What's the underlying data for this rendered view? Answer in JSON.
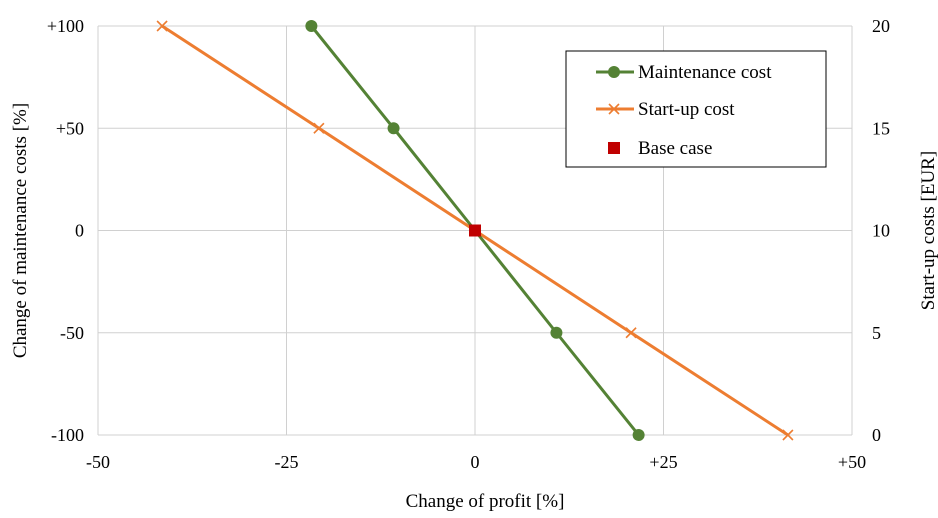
{
  "chart_data": {
    "type": "line",
    "title": "",
    "xlabel": "Change of profit [%]",
    "ylabel_left": "Change of maintenance costs [%]",
    "ylabel_right": "Start-up costs [EUR]",
    "xlim": [
      -50,
      50
    ],
    "ylim_left": [
      -100,
      100
    ],
    "ylim_right": [
      0,
      20
    ],
    "x_ticks": [
      -50,
      -25,
      0,
      25,
      50
    ],
    "x_tick_labels": [
      "-50",
      "-25",
      "0",
      "+25",
      "+50"
    ],
    "y_left_ticks": [
      100,
      50,
      0,
      -50,
      -100
    ],
    "y_left_tick_labels": [
      "+100",
      "+50",
      "0",
      "-50",
      "-100"
    ],
    "y_right_ticks": [
      20,
      15,
      10,
      5,
      0
    ],
    "y_right_tick_labels": [
      "20",
      "15",
      "10",
      "5",
      "0"
    ],
    "grid": true,
    "legend_position": "top-right",
    "series": [
      {
        "name": "Maintenance cost",
        "axis": "left",
        "color": "#548235",
        "marker": "circle",
        "x": [
          -21.7,
          -10.8,
          0,
          10.8,
          21.7
        ],
        "y": [
          100,
          50,
          0,
          -50,
          -100
        ]
      },
      {
        "name": "Start-up cost",
        "axis": "right",
        "color": "#ED7D31",
        "marker": "x",
        "x": [
          -41.5,
          -20.7,
          0,
          20.7,
          41.5
        ],
        "y": [
          20,
          15,
          10,
          5,
          0
        ]
      },
      {
        "name": "Base case",
        "axis": "left",
        "color": "#C00000",
        "marker": "square",
        "x": [
          0
        ],
        "y": [
          0
        ]
      }
    ]
  }
}
